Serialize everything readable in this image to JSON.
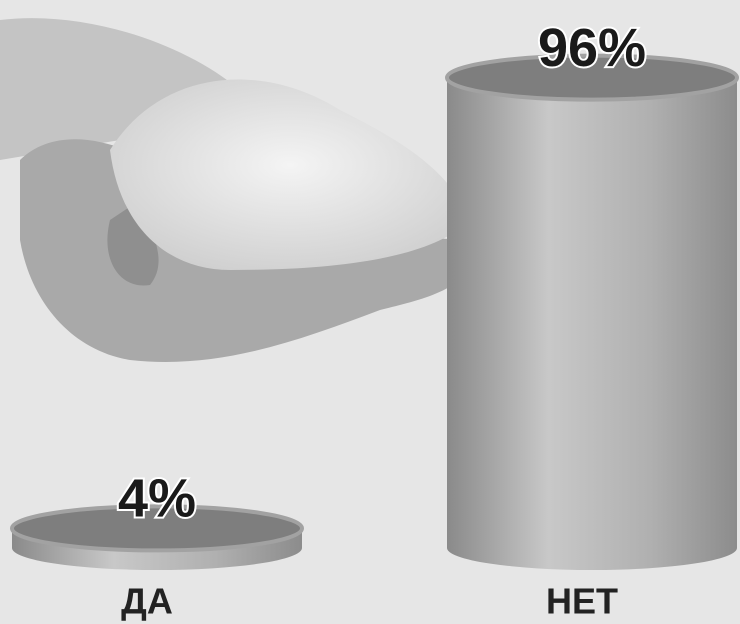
{
  "chart_data": {
    "type": "bar",
    "categories": [
      "ДА",
      "НЕТ"
    ],
    "values": [
      4,
      96
    ],
    "value_labels": [
      "4%",
      "96%"
    ],
    "color": "#a2a2a2"
  }
}
